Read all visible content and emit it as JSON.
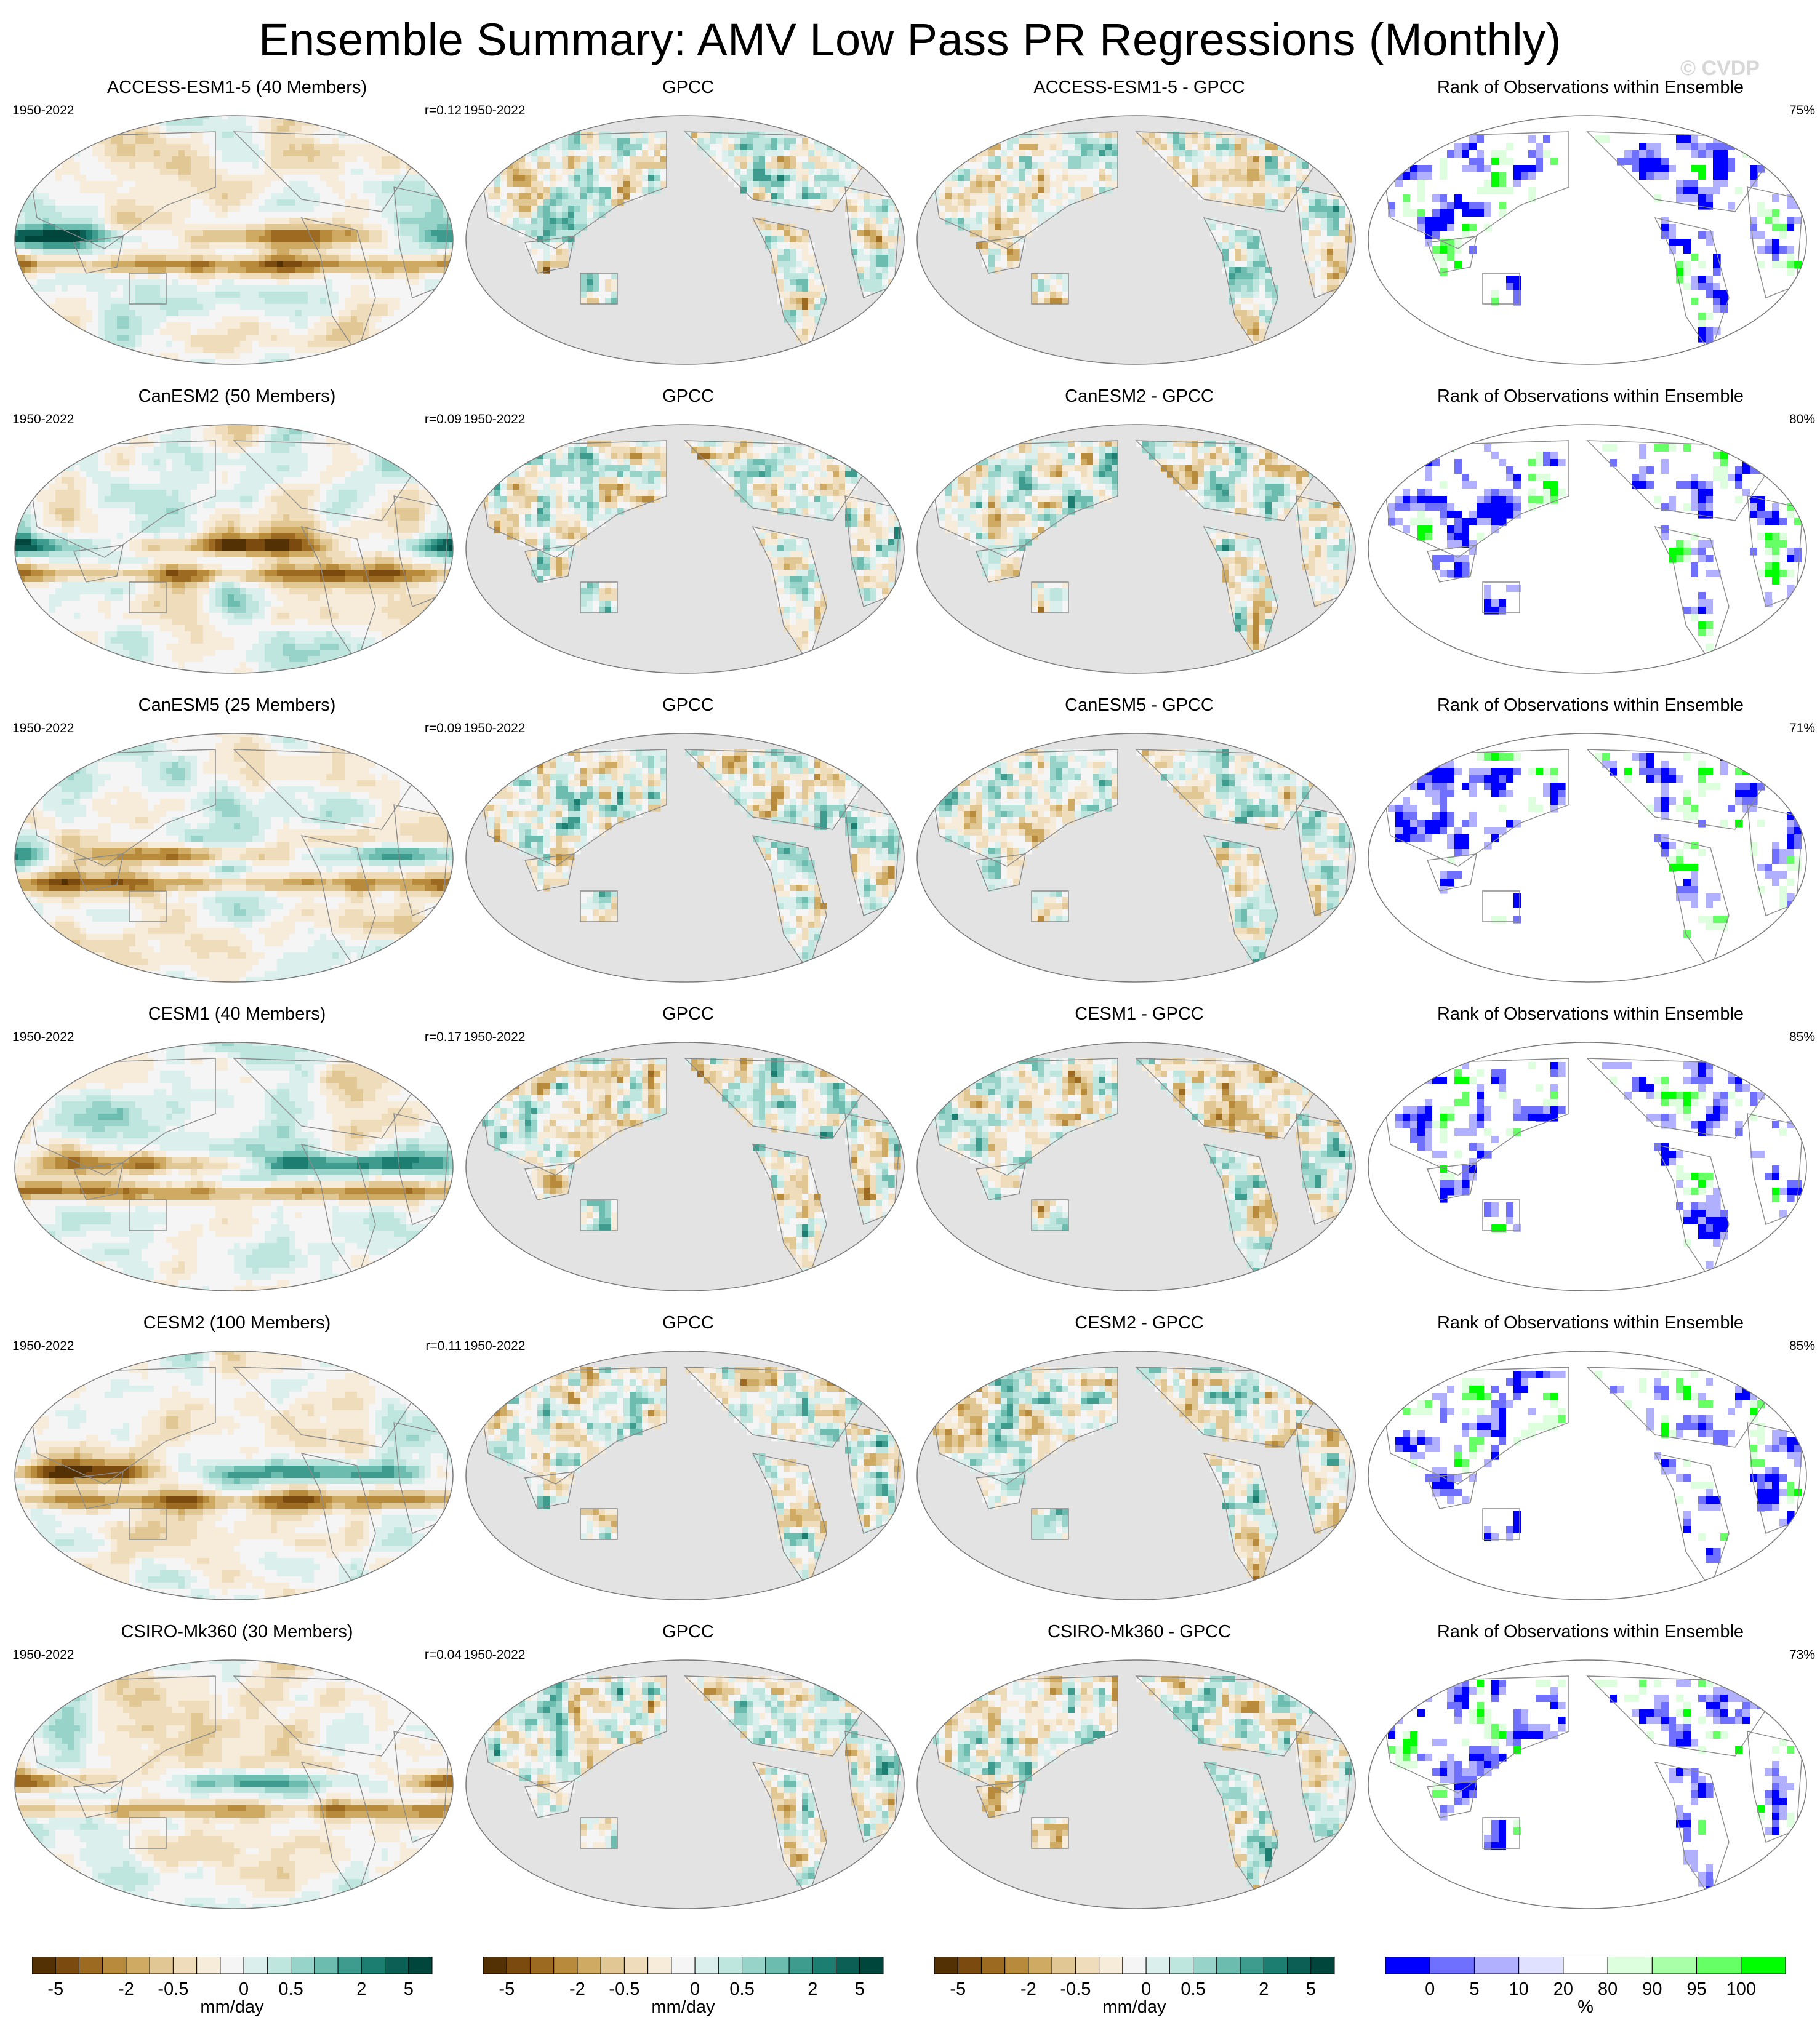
{
  "title": "Ensemble Summary: AMV Low Pass PR Regressions (Monthly)",
  "watermark": "© CVDP",
  "rows": [
    {
      "model_title": "ACCESS-ESM1-5 (40 Members)",
      "model_years": "1950-2022",
      "model_r": "r=0.12",
      "obs_title": "GPCC",
      "obs_years": "1950-2022",
      "diff_title": "ACCESS-ESM1-5 - GPCC",
      "rank_title": "Rank of Observations within Ensemble",
      "rank_pct": "75%"
    },
    {
      "model_title": "CanESM2 (50 Members)",
      "model_years": "1950-2022",
      "model_r": "r=0.09",
      "obs_title": "GPCC",
      "obs_years": "1950-2022",
      "diff_title": "CanESM2 - GPCC",
      "rank_title": "Rank of Observations within Ensemble",
      "rank_pct": "80%"
    },
    {
      "model_title": "CanESM5 (25 Members)",
      "model_years": "1950-2022",
      "model_r": "r=0.09",
      "obs_title": "GPCC",
      "obs_years": "1950-2022",
      "diff_title": "CanESM5 - GPCC",
      "rank_title": "Rank of Observations within Ensemble",
      "rank_pct": "71%"
    },
    {
      "model_title": "CESM1 (40 Members)",
      "model_years": "1950-2022",
      "model_r": "r=0.17",
      "obs_title": "GPCC",
      "obs_years": "1950-2022",
      "diff_title": "CESM1 - GPCC",
      "rank_title": "Rank of Observations within Ensemble",
      "rank_pct": "85%"
    },
    {
      "model_title": "CESM2 (100 Members)",
      "model_years": "1950-2022",
      "model_r": "r=0.11",
      "obs_title": "GPCC",
      "obs_years": "1950-2022",
      "diff_title": "CESM2 - GPCC",
      "rank_title": "Rank of Observations within Ensemble",
      "rank_pct": "85%"
    },
    {
      "model_title": "CSIRO-Mk360 (30 Members)",
      "model_years": "1950-2022",
      "model_r": "r=0.04",
      "obs_title": "GPCC",
      "obs_years": "1950-2022",
      "diff_title": "CSIRO-Mk360 - GPCC",
      "rank_title": "Rank of Observations within Ensemble",
      "rank_pct": "73%"
    }
  ],
  "colorbars": {
    "pr_unit": "mm/day",
    "pr_ticks": [
      "-5",
      "-2",
      "-0.5",
      "0",
      "0.5",
      "2",
      "5"
    ],
    "pr_colors": [
      "#543005",
      "#7b4a0e",
      "#9c6a21",
      "#b88a3c",
      "#cfaa63",
      "#e0c794",
      "#eedcbb",
      "#f6ecd9",
      "#f5f5f5",
      "#dbefec",
      "#bfe5df",
      "#97d3c9",
      "#6cbdb0",
      "#3e9c8f",
      "#1c7d71",
      "#0b5f55",
      "#00463c"
    ],
    "rank_unit": "%",
    "rank_ticks": [
      "0",
      "5",
      "10",
      "20",
      "80",
      "90",
      "95",
      "100"
    ],
    "rank_colors": [
      "#0000ff",
      "#7070ff",
      "#b0b0ff",
      "#e0e0ff",
      "#ffffff",
      "#ddffdd",
      "#a8ffa8",
      "#66ff66",
      "#00ff00"
    ]
  },
  "chart_data": {
    "type": "heatmap",
    "title": "Ensemble Summary: AMV Low Pass PR Regressions (Monthly)",
    "panels_per_row": [
      "ensemble mean regression",
      "GPCC observations",
      "ensemble mean minus GPCC",
      "rank of observations within ensemble"
    ],
    "models": [
      {
        "name": "ACCESS-ESM1-5",
        "members": 40,
        "r": 0.12,
        "rank_pct": 75
      },
      {
        "name": "CanESM2",
        "members": 50,
        "r": 0.09,
        "rank_pct": 80
      },
      {
        "name": "CanESM5",
        "members": 25,
        "r": 0.09,
        "rank_pct": 71
      },
      {
        "name": "CESM1",
        "members": 40,
        "r": 0.17,
        "rank_pct": 85
      },
      {
        "name": "CESM2",
        "members": 100,
        "r": 0.11,
        "rank_pct": 85
      },
      {
        "name": "CSIRO-Mk360",
        "members": 30,
        "r": 0.04,
        "rank_pct": 73
      }
    ],
    "observations": "GPCC",
    "period": "1950-2022",
    "pr_levels": [
      -5,
      -4,
      -3,
      -2,
      -1,
      -0.5,
      -0.2,
      0,
      0.2,
      0.5,
      1,
      2,
      3,
      4,
      5
    ],
    "pr_units": "mm/day",
    "rank_levels": [
      0,
      5,
      10,
      20,
      80,
      90,
      95,
      100
    ],
    "rank_units": "%"
  }
}
